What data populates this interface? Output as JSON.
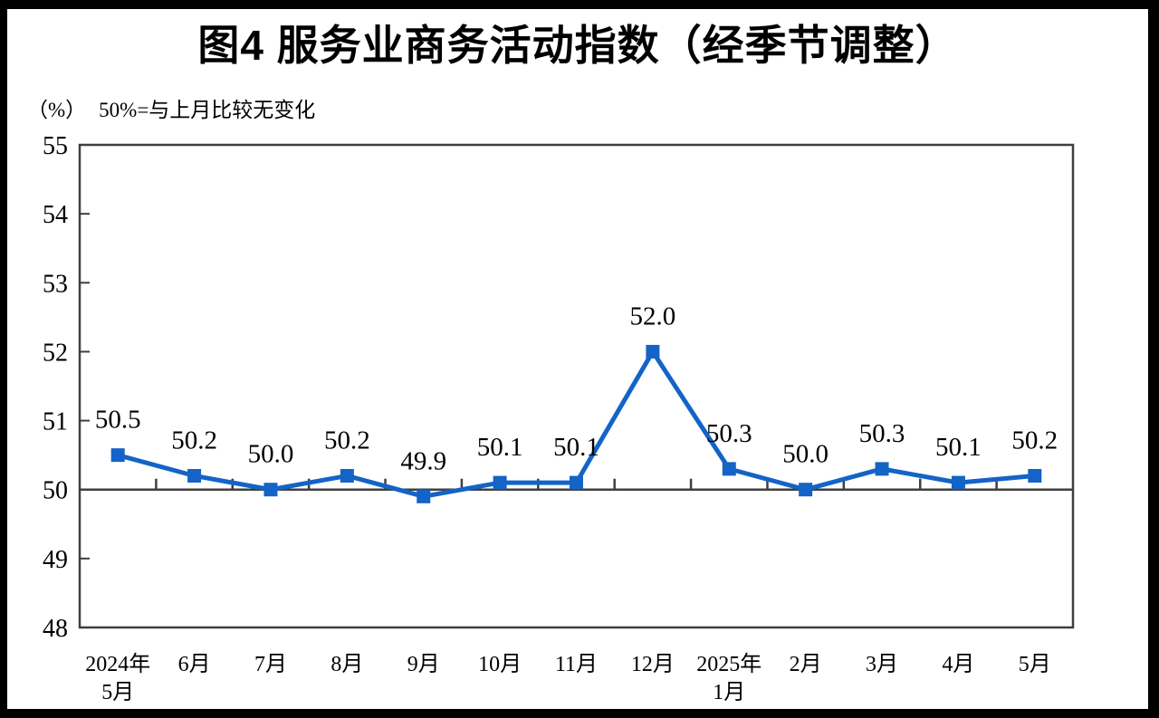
{
  "page": {
    "background": "#ffffff",
    "frame_color": "#000000"
  },
  "chart_data": {
    "type": "line",
    "title": "图4 服务业商务活动指数（经季节调整）",
    "unit_label": "（%）",
    "reference_note": "50%=与上月比较无变化",
    "categories": [
      [
        "2024年",
        "5月"
      ],
      [
        "6月"
      ],
      [
        "7月"
      ],
      [
        "8月"
      ],
      [
        "9月"
      ],
      [
        "10月"
      ],
      [
        "11月"
      ],
      [
        "12月"
      ],
      [
        "2025年",
        "1月"
      ],
      [
        "2月"
      ],
      [
        "3月"
      ],
      [
        "4月"
      ],
      [
        "5月"
      ]
    ],
    "values": [
      50.5,
      50.2,
      50.0,
      50.2,
      49.9,
      50.1,
      50.1,
      52.0,
      50.3,
      50.0,
      50.3,
      50.1,
      50.2
    ],
    "ylim": [
      48,
      55
    ],
    "yticks": [
      48,
      49,
      50,
      51,
      52,
      53,
      54,
      55
    ],
    "reference_line": 50,
    "xlabel": "",
    "ylabel": "（%）",
    "grid": false,
    "legend": "none",
    "marker": "square",
    "line_color": "#1463C7",
    "axis_color": "#3F3F3F",
    "text_color": "#000000"
  }
}
